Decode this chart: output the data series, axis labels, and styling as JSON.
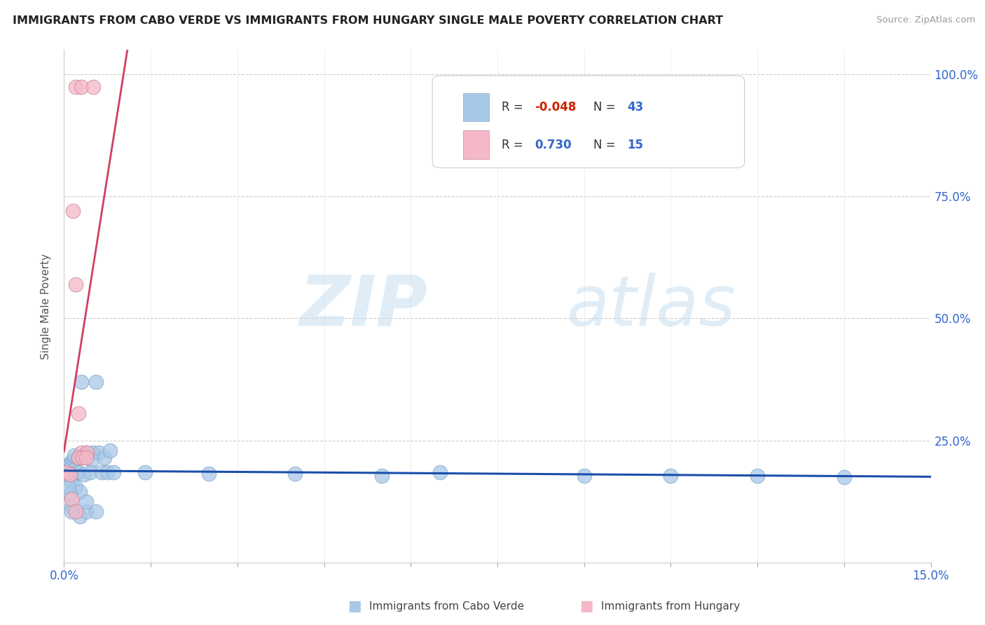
{
  "title": "IMMIGRANTS FROM CABO VERDE VS IMMIGRANTS FROM HUNGARY SINGLE MALE POVERTY CORRELATION CHART",
  "source": "Source: ZipAtlas.com",
  "ylabel": "Single Male Poverty",
  "y_ticks": [
    0.0,
    0.25,
    0.5,
    0.75,
    1.0
  ],
  "y_tick_labels_right": [
    "",
    "25.0%",
    "50.0%",
    "75.0%",
    "100.0%"
  ],
  "x_ticks": [
    0.0,
    0.015,
    0.03,
    0.045,
    0.06,
    0.075,
    0.09,
    0.105,
    0.12,
    0.135,
    0.15
  ],
  "cabo_verde_R": -0.048,
  "cabo_verde_N": 43,
  "hungary_R": 0.73,
  "hungary_N": 15,
  "cabo_verde_color": "#a8c8e8",
  "hungary_color": "#f4b8c8",
  "trend_cabo_verde_color": "#1a4faa",
  "trend_hungary_color": "#d04060",
  "cabo_verde_points": [
    [
      0.0008,
      0.2
    ],
    [
      0.0012,
      0.205
    ],
    [
      0.0015,
      0.21
    ],
    [
      0.001,
      0.195
    ],
    [
      0.003,
      0.37
    ],
    [
      0.0055,
      0.37
    ],
    [
      0.0005,
      0.195
    ],
    [
      0.0009,
      0.19
    ],
    [
      0.0018,
      0.22
    ],
    [
      0.0025,
      0.215
    ],
    [
      0.0013,
      0.165
    ],
    [
      0.002,
      0.155
    ],
    [
      0.0028,
      0.145
    ],
    [
      0.001,
      0.14
    ],
    [
      0.0007,
      0.155
    ],
    [
      0.0018,
      0.19
    ],
    [
      0.0025,
      0.185
    ],
    [
      0.0035,
      0.18
    ],
    [
      0.005,
      0.225
    ],
    [
      0.006,
      0.225
    ],
    [
      0.0048,
      0.21
    ],
    [
      0.007,
      0.215
    ],
    [
      0.008,
      0.23
    ],
    [
      0.0045,
      0.185
    ],
    [
      0.0038,
      0.225
    ],
    [
      0.0013,
      0.115
    ],
    [
      0.0028,
      0.095
    ],
    [
      0.0038,
      0.105
    ],
    [
      0.0055,
      0.105
    ],
    [
      0.0065,
      0.185
    ],
    [
      0.0075,
      0.185
    ],
    [
      0.0085,
      0.185
    ],
    [
      0.014,
      0.185
    ],
    [
      0.025,
      0.182
    ],
    [
      0.04,
      0.182
    ],
    [
      0.055,
      0.178
    ],
    [
      0.065,
      0.185
    ],
    [
      0.09,
      0.178
    ],
    [
      0.105,
      0.178
    ],
    [
      0.12,
      0.178
    ],
    [
      0.135,
      0.175
    ],
    [
      0.0013,
      0.105
    ],
    [
      0.0038,
      0.125
    ]
  ],
  "hungary_points": [
    [
      0.002,
      0.975
    ],
    [
      0.003,
      0.975
    ],
    [
      0.005,
      0.975
    ],
    [
      0.0015,
      0.72
    ],
    [
      0.002,
      0.57
    ],
    [
      0.0025,
      0.305
    ],
    [
      0.003,
      0.225
    ],
    [
      0.004,
      0.225
    ],
    [
      0.0025,
      0.215
    ],
    [
      0.0032,
      0.215
    ],
    [
      0.0038,
      0.215
    ],
    [
      0.0005,
      0.185
    ],
    [
      0.001,
      0.18
    ],
    [
      0.0013,
      0.13
    ],
    [
      0.002,
      0.105
    ]
  ],
  "watermark_zip": "ZIP",
  "watermark_atlas": "atlas",
  "xlim": [
    0.0,
    0.15
  ],
  "ylim": [
    0.0,
    1.05
  ]
}
